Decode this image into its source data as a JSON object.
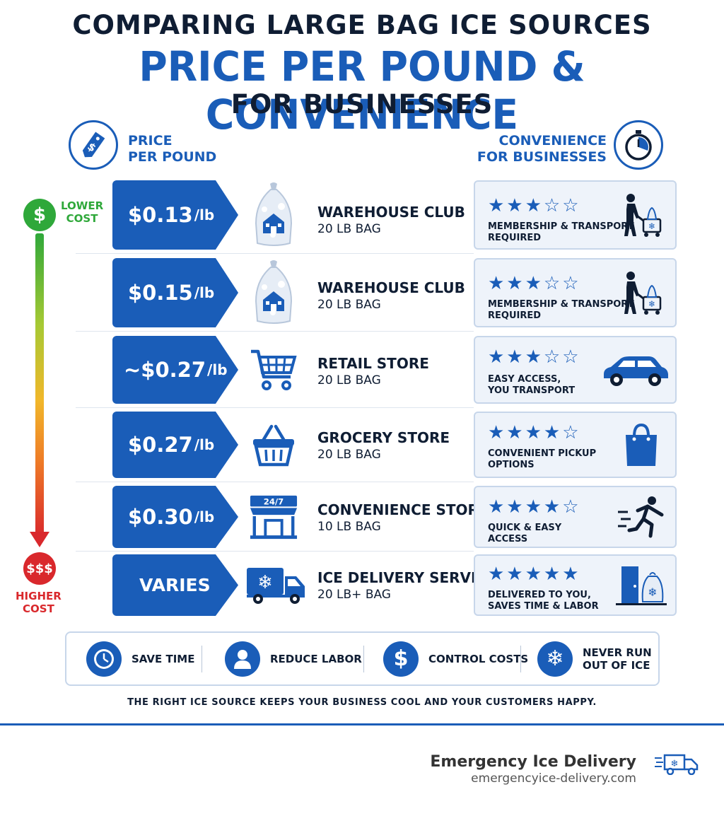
{
  "header": {
    "line1": "COMPARING LARGE BAG ICE SOURCES",
    "line2": "PRICE PER POUND & CONVENIENCE",
    "line3": "FOR BUSINESSES",
    "price_label_1": "PRICE",
    "price_label_2": "PER POUND",
    "convenience_label_1": "CONVENIENCE",
    "convenience_label_2": "FOR BUSINESSES"
  },
  "scale": {
    "low_symbol": "$",
    "low_label_1": "LOWER",
    "low_label_2": "COST",
    "high_symbol": "$$$",
    "high_label_1": "HIGHER",
    "high_label_2": "COST"
  },
  "rows": [
    {
      "price": "$0.13",
      "unit": "/lb",
      "source": "WAREHOUSE CLUB",
      "size": "20 LB BAG",
      "rating": 3,
      "note_1": "MEMBERSHIP & TRANSPORT",
      "note_2": "REQUIRED",
      "source_icon": "ice-bag-icon",
      "convenience_icon": "person-cart-icon"
    },
    {
      "price": "$0.15",
      "unit": "/lb",
      "source": "WAREHOUSE CLUB",
      "size": "20 LB BAG",
      "rating": 3,
      "note_1": "MEMBERSHIP & TRANSPORT",
      "note_2": "REQUIRED",
      "source_icon": "ice-bag-icon",
      "convenience_icon": "person-cart-icon"
    },
    {
      "price": "~$0.27",
      "unit": "/lb",
      "source": "RETAIL STORE",
      "size": "20 LB BAG",
      "rating": 3,
      "note_1": "EASY ACCESS,",
      "note_2": "YOU TRANSPORT",
      "source_icon": "shopping-cart-icon",
      "convenience_icon": "car-icon"
    },
    {
      "price": "$0.27",
      "unit": "/lb",
      "source": "GROCERY STORE",
      "size": "20 LB BAG",
      "rating": 4,
      "note_1": "CONVENIENT PICKUP",
      "note_2": "OPTIONS",
      "source_icon": "basket-icon",
      "convenience_icon": "shopping-bag-icon"
    },
    {
      "price": "$0.30",
      "unit": "/lb",
      "source": "CONVENIENCE STORE",
      "size": "10 LB BAG",
      "rating": 4,
      "note_1": "QUICK & EASY",
      "note_2": "ACCESS",
      "source_icon": "store-24-7-icon",
      "convenience_icon": "running-person-icon",
      "store_badge": "24/7"
    },
    {
      "price": "VARIES",
      "unit": "",
      "source": "ICE DELIVERY SERVICE",
      "size": "20 LB+ BAG",
      "rating": 5,
      "note_1": "DELIVERED TO YOU,",
      "note_2": "SAVES TIME & LABOR",
      "source_icon": "delivery-truck-icon",
      "convenience_icon": "door-ice-bag-icon"
    }
  ],
  "benefits": [
    {
      "label_1": "SAVE TIME",
      "label_2": "",
      "icon": "clock-icon"
    },
    {
      "label_1": "REDUCE LABOR",
      "label_2": "",
      "icon": "person-icon"
    },
    {
      "label_1": "CONTROL COSTS",
      "label_2": "",
      "icon": "dollar-icon"
    },
    {
      "label_1": "NEVER RUN",
      "label_2": "OUT OF ICE",
      "icon": "snowflake-icon"
    }
  ],
  "tagline": "THE RIGHT ICE SOURCE KEEPS YOUR BUSINESS COOL AND YOUR CUSTOMERS HAPPY.",
  "brand": {
    "name": "Emergency Ice Delivery",
    "url": "emergencyice-delivery.com"
  },
  "colors": {
    "primary_blue": "#1a5db8",
    "dark_text": "#0f1d33",
    "low_cost_green": "#2fa83a",
    "high_cost_red": "#d9282c",
    "panel_bg": "#eef3fa"
  }
}
